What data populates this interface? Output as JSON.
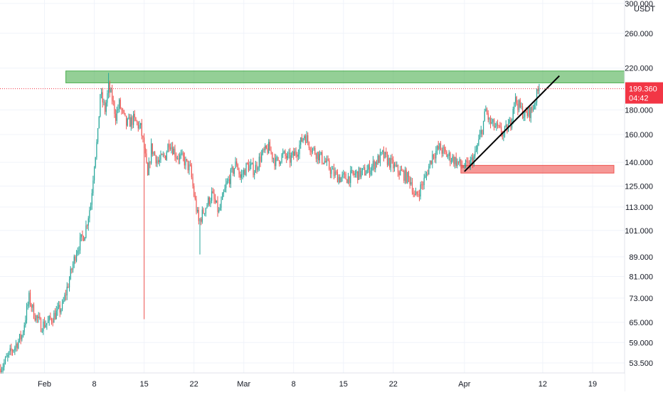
{
  "chart_data": {
    "type": "candlestick",
    "currency": "USDT",
    "y_scale": "log",
    "ylim": [
      51,
      305
    ],
    "y_ticks": [
      "53.500",
      "59.000",
      "65.000",
      "73.000",
      "81.000",
      "89.000",
      "101.000",
      "113.000",
      "125.000",
      "140.000",
      "160.000",
      "180.000",
      "220.000",
      "260.000",
      "300.000"
    ],
    "x_ticks": [
      {
        "label": "Feb",
        "date": "2021-02-01"
      },
      {
        "label": "8",
        "date": "2021-02-08"
      },
      {
        "label": "15",
        "date": "2021-02-15"
      },
      {
        "label": "22",
        "date": "2021-02-22"
      },
      {
        "label": "Mar",
        "date": "2021-03-01"
      },
      {
        "label": "8",
        "date": "2021-03-08"
      },
      {
        "label": "15",
        "date": "2021-03-15"
      },
      {
        "label": "22",
        "date": "2021-03-22"
      },
      {
        "label": "Apr",
        "date": "2021-04-01"
      },
      {
        "label": "12",
        "date": "2021-04-12"
      },
      {
        "label": "19",
        "date": "2021-04-19"
      }
    ],
    "xlim": [
      "2021-01-25T18:00",
      "2021-04-23T12:00"
    ],
    "last_price": {
      "value": 199.36,
      "label": "199.360",
      "countdown": "04:42"
    },
    "zones": [
      {
        "kind": "resistance",
        "color": "#4caf50",
        "from": "2021-02-04",
        "to": "2021-04-23T12:00",
        "low": 205,
        "high": 217
      },
      {
        "kind": "support",
        "color": "#ef5350",
        "from": "2021-03-31T12:00",
        "to": "2021-04-22",
        "low": 133,
        "high": 138
      }
    ],
    "trendline": {
      "color": "#000000",
      "from": {
        "date": "2021-04-01",
        "price": 134
      },
      "to": {
        "date": "2021-04-14T08:00",
        "price": 212
      }
    },
    "colors": {
      "up": "#26a69a",
      "down": "#ef5350",
      "price_line": "#f23645"
    },
    "anchors": [
      [
        "2021-01-25T20:00",
        52
      ],
      [
        "2021-01-27T12:00",
        57
      ],
      [
        "2021-01-28T20:00",
        61
      ],
      [
        "2021-01-29T20:00",
        73
      ],
      [
        "2021-01-30T12:00",
        68
      ],
      [
        "2021-01-31T12:00",
        64
      ],
      [
        "2021-02-01T12:00",
        65
      ],
      [
        "2021-02-02T16:00",
        68
      ],
      [
        "2021-02-03T12:00",
        70
      ],
      [
        "2021-02-04T12:00",
        80
      ],
      [
        "2021-02-05T12:00",
        92
      ],
      [
        "2021-02-06T16:00",
        100
      ],
      [
        "2021-02-07T12:00",
        115
      ],
      [
        "2021-02-08T00:00",
        140
      ],
      [
        "2021-02-08T12:00",
        160
      ],
      [
        "2021-02-08T20:00",
        195
      ],
      [
        "2021-02-09T12:00",
        180
      ],
      [
        "2021-02-10T00:00",
        200
      ],
      [
        "2021-02-10T12:00",
        190
      ],
      [
        "2021-02-11T00:00",
        175
      ],
      [
        "2021-02-11T12:00",
        185
      ],
      [
        "2021-02-12T12:00",
        168
      ],
      [
        "2021-02-13T12:00",
        172
      ],
      [
        "2021-02-14T12:00",
        165
      ],
      [
        "2021-02-15T00:00",
        150
      ],
      [
        "2021-02-15T12:00",
        130
      ],
      [
        "2021-02-16T00:00",
        150
      ],
      [
        "2021-02-17T00:00",
        140
      ],
      [
        "2021-02-18T00:00",
        145
      ],
      [
        "2021-02-18T12:00",
        155
      ],
      [
        "2021-02-19T12:00",
        145
      ],
      [
        "2021-02-20T12:00",
        142
      ],
      [
        "2021-02-21T12:00",
        135
      ],
      [
        "2021-02-22T00:00",
        120
      ],
      [
        "2021-02-22T16:00",
        105
      ],
      [
        "2021-02-23T12:00",
        112
      ],
      [
        "2021-02-24T12:00",
        120
      ],
      [
        "2021-02-25T12:00",
        110
      ],
      [
        "2021-02-26T12:00",
        125
      ],
      [
        "2021-02-27T12:00",
        135
      ],
      [
        "2021-02-28T00:00",
        140
      ],
      [
        "2021-02-28T12:00",
        130
      ],
      [
        "2021-03-01T12:00",
        138
      ],
      [
        "2021-03-02T12:00",
        135
      ],
      [
        "2021-03-03T12:00",
        145
      ],
      [
        "2021-03-04T12:00",
        150
      ],
      [
        "2021-03-05T12:00",
        140
      ],
      [
        "2021-03-06T12:00",
        145
      ],
      [
        "2021-03-07T12:00",
        142
      ],
      [
        "2021-03-08T12:00",
        148
      ],
      [
        "2021-03-09T12:00",
        160
      ],
      [
        "2021-03-10T12:00",
        150
      ],
      [
        "2021-03-11T12:00",
        145
      ],
      [
        "2021-03-12T12:00",
        140
      ],
      [
        "2021-03-13T12:00",
        133
      ],
      [
        "2021-03-14T12:00",
        130
      ],
      [
        "2021-03-15T12:00",
        130
      ],
      [
        "2021-03-16T12:00",
        132
      ],
      [
        "2021-03-17T12:00",
        133
      ],
      [
        "2021-03-18T12:00",
        135
      ],
      [
        "2021-03-19T12:00",
        140
      ],
      [
        "2021-03-20T12:00",
        145
      ],
      [
        "2021-03-21T12:00",
        140
      ],
      [
        "2021-03-22T12:00",
        135
      ],
      [
        "2021-03-23T12:00",
        132
      ],
      [
        "2021-03-24T12:00",
        128
      ],
      [
        "2021-03-25T00:00",
        118
      ],
      [
        "2021-03-25T12:00",
        121
      ],
      [
        "2021-03-26T12:00",
        130
      ],
      [
        "2021-03-27T12:00",
        145
      ],
      [
        "2021-03-28T12:00",
        150
      ],
      [
        "2021-03-29T12:00",
        145
      ],
      [
        "2021-03-30T12:00",
        142
      ],
      [
        "2021-03-31T12:00",
        138
      ],
      [
        "2021-04-01T12:00",
        137
      ],
      [
        "2021-04-02T12:00",
        145
      ],
      [
        "2021-04-03T12:00",
        165
      ],
      [
        "2021-04-04T00:00",
        180
      ],
      [
        "2021-04-04T12:00",
        170
      ],
      [
        "2021-04-05T12:00",
        165
      ],
      [
        "2021-04-06T12:00",
        160
      ],
      [
        "2021-04-07T12:00",
        170
      ],
      [
        "2021-04-08T00:00",
        190
      ],
      [
        "2021-04-08T12:00",
        185
      ],
      [
        "2021-04-09T12:00",
        175
      ],
      [
        "2021-04-10T12:00",
        180
      ],
      [
        "2021-04-11T00:00",
        190
      ],
      [
        "2021-04-11T12:00",
        200
      ]
    ],
    "spikes": [
      {
        "date": "2021-02-15T00:00",
        "low": 66
      },
      {
        "date": "2021-02-22T20:00",
        "low": 90
      },
      {
        "date": "2021-02-10T00:00",
        "high": 215
      }
    ]
  }
}
